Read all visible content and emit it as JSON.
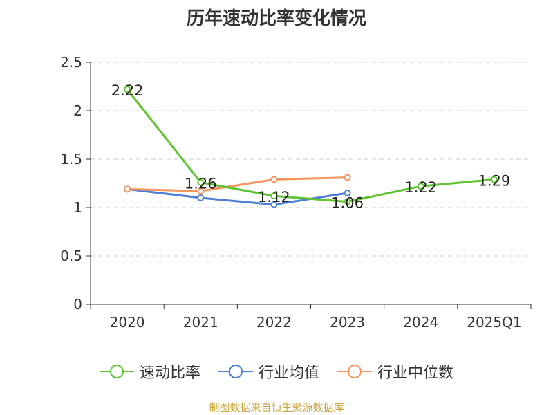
{
  "chart_data": {
    "type": "line",
    "title": "历年速动比率变化情况",
    "categories": [
      "2020",
      "2021",
      "2022",
      "2023",
      "2024",
      "2025Q1"
    ],
    "ylim": [
      0,
      2.5
    ],
    "yticks": [
      "0",
      "0.5",
      "1",
      "1.5",
      "2",
      "2.5"
    ],
    "grid": true,
    "legend_position": "bottom",
    "series": [
      {
        "name": "速动比率",
        "color": "#5fc332",
        "values": [
          2.22,
          1.26,
          1.12,
          1.06,
          1.22,
          1.29
        ],
        "labels": [
          "2.22",
          "1.26",
          "1.12",
          "1.06",
          "1.22",
          "1.29"
        ]
      },
      {
        "name": "行业均值",
        "color": "#4c7fd6",
        "values": [
          1.19,
          1.1,
          1.03,
          1.15,
          null,
          null
        ]
      },
      {
        "name": "行业中位数",
        "color": "#f5955d",
        "values": [
          1.19,
          1.17,
          1.29,
          1.31,
          null,
          null
        ]
      }
    ]
  },
  "source_text": "制图数据来自恒生聚源数据库"
}
